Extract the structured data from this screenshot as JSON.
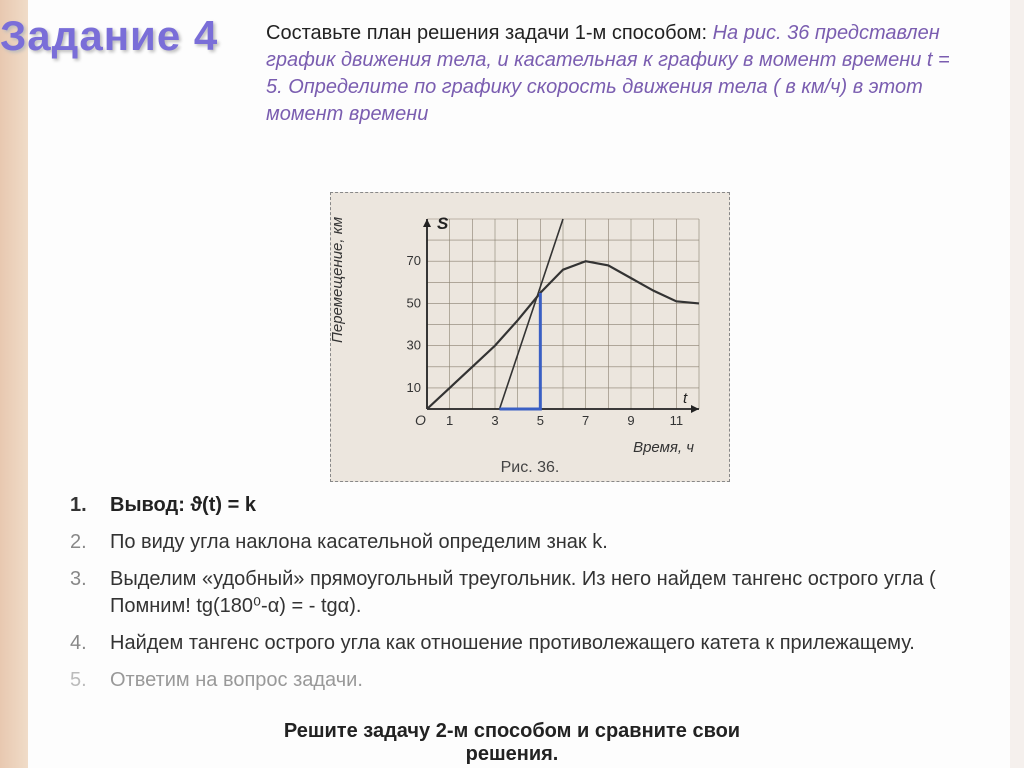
{
  "title": "Задание 4",
  "intro_black": "Составьте план решения задачи 1-м способом: ",
  "intro_purple": "На рис. 36 представлен график движения тела, и касательная к графику в момент времени t = 5. Определите по графику скорость движения тела ( в км/ч) в этот момент времени",
  "chart": {
    "ylabel": "Перемещение, км",
    "xlabel": "Время, ч",
    "s_label": "S",
    "t_label": "t",
    "fig_caption": "Рис. 36.",
    "xticks": [
      1,
      3,
      5,
      7,
      9,
      11
    ],
    "yticks": [
      10,
      30,
      50,
      70
    ],
    "xlim": [
      0,
      12
    ],
    "ylim": [
      0,
      90
    ],
    "grid_color": "#8a8070",
    "bg_color": "#ece6de",
    "curve_color": "#333333",
    "curve_width": 2.2,
    "tangent_color": "#333333",
    "tangent_width": 1.6,
    "triangle_color": "#3a5fc4",
    "triangle_width": 3,
    "curve_points": [
      [
        0,
        0
      ],
      [
        1,
        10
      ],
      [
        2,
        20
      ],
      [
        3,
        30
      ],
      [
        4,
        42
      ],
      [
        5,
        55
      ],
      [
        6,
        66
      ],
      [
        7,
        70
      ],
      [
        8,
        68
      ],
      [
        9,
        62
      ],
      [
        10,
        56
      ],
      [
        11,
        51
      ],
      [
        12,
        50
      ]
    ],
    "tangent_points": [
      [
        3.2,
        0
      ],
      [
        6.0,
        90
      ]
    ],
    "triangle_points": [
      [
        3.2,
        0
      ],
      [
        5,
        0
      ],
      [
        5,
        55
      ]
    ]
  },
  "steps": [
    {
      "n": "1.",
      "text": "Вывод: ϑ(t) = k",
      "cls": "first"
    },
    {
      "n": "2.",
      "text": "По виду угла наклона касательной определим знак k.",
      "cls": ""
    },
    {
      "n": "3.",
      "text": "Выделим «удобный» прямоугольный треугольник. Из него найдем тангенс острого угла ( Помним! tg(180⁰-α) = - tgα).",
      "cls": ""
    },
    {
      "n": "4.",
      "text": "Найдем тангенс острого угла как отношение противолежащего катета к прилежащему.",
      "cls": ""
    },
    {
      "n": "5.",
      "text": "Ответим на вопрос задачи.",
      "cls": "last"
    }
  ],
  "bottom_line1": "Решите задачу 2-м способом и сравните свои",
  "bottom_line2": "решения."
}
